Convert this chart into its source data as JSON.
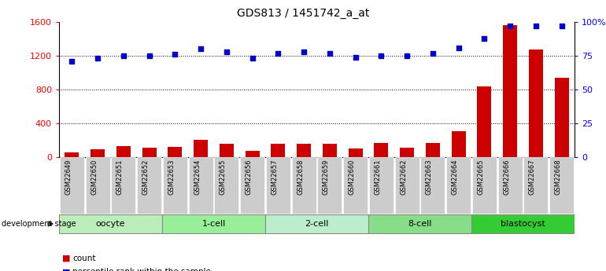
{
  "title": "GDS813 / 1451742_a_at",
  "samples": [
    "GSM22649",
    "GSM22650",
    "GSM22651",
    "GSM22652",
    "GSM22653",
    "GSM22654",
    "GSM22655",
    "GSM22656",
    "GSM22657",
    "GSM22658",
    "GSM22659",
    "GSM22660",
    "GSM22661",
    "GSM22662",
    "GSM22663",
    "GSM22664",
    "GSM22665",
    "GSM22666",
    "GSM22667",
    "GSM22668"
  ],
  "counts": [
    55,
    95,
    130,
    110,
    125,
    205,
    155,
    75,
    160,
    160,
    155,
    105,
    170,
    110,
    170,
    310,
    840,
    1560,
    1270,
    940
  ],
  "percentile": [
    71,
    73,
    75,
    75,
    76,
    80,
    78,
    73,
    77,
    78,
    77,
    74,
    75,
    75,
    77,
    81,
    88,
    97,
    97,
    97
  ],
  "groups": [
    {
      "name": "oocyte",
      "start": 0,
      "end": 4,
      "color": "#bbeebb"
    },
    {
      "name": "1-cell",
      "start": 4,
      "end": 8,
      "color": "#99ee99"
    },
    {
      "name": "2-cell",
      "start": 8,
      "end": 12,
      "color": "#bbeecc"
    },
    {
      "name": "8-cell",
      "start": 12,
      "end": 16,
      "color": "#88dd88"
    },
    {
      "name": "blastocyst",
      "start": 16,
      "end": 20,
      "color": "#33cc33"
    }
  ],
  "bar_color": "#cc0000",
  "dot_color": "#0000cc",
  "left_ylim": [
    0,
    1600
  ],
  "right_ylim": [
    0,
    100
  ],
  "left_yticks": [
    0,
    400,
    800,
    1200,
    1600
  ],
  "right_yticks": [
    0,
    25,
    50,
    75,
    100
  ],
  "right_yticklabels": [
    "0",
    "25",
    "50",
    "75",
    "100%"
  ],
  "grid_lines": [
    400,
    800,
    1200
  ],
  "xtick_bg_color": "#cccccc",
  "xtick_sep_color": "#ffffff"
}
